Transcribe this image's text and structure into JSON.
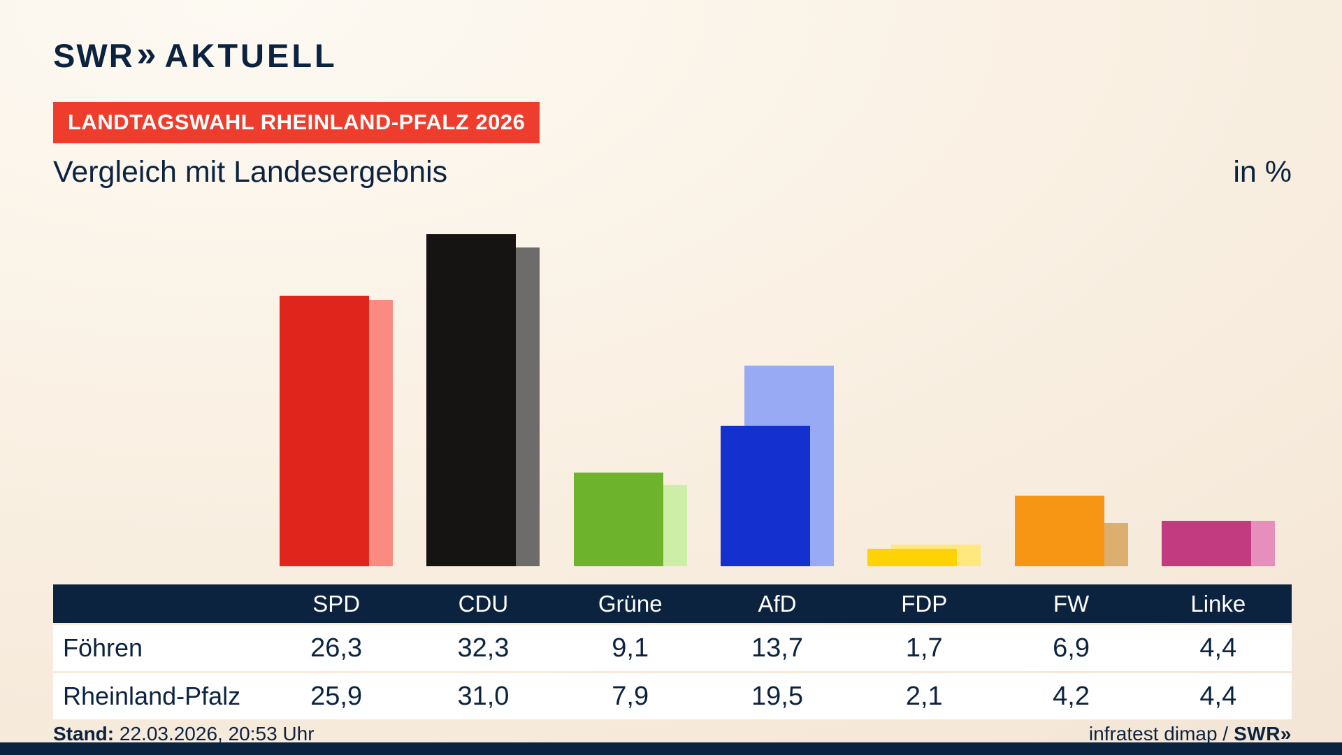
{
  "theme": {
    "navy": "#0c2340",
    "badge_red": "#ee3c2d",
    "background_cream": "#f8efe2"
  },
  "brand": {
    "logo_swr": "SWR",
    "logo_chevrons": "»",
    "logo_aktuell": "AKTUELL"
  },
  "header": {
    "badge": "LANDTAGSWAHL RHEINLAND-PFALZ 2026",
    "title": "Vergleich mit Landesergebnis",
    "unit_label": "in %"
  },
  "chart_data": {
    "type": "bar",
    "title": "Vergleich mit Landesergebnis",
    "unit": "in %",
    "categories": [
      "SPD",
      "CDU",
      "Grüne",
      "AfD",
      "FDP",
      "FW",
      "Linke"
    ],
    "series": [
      {
        "name": "Föhren",
        "values": [
          26.3,
          32.3,
          9.1,
          13.7,
          1.7,
          6.9,
          4.4
        ]
      },
      {
        "name": "Rheinland-Pfalz",
        "values": [
          25.9,
          31.0,
          7.9,
          19.5,
          2.1,
          4.2,
          4.4
        ]
      }
    ],
    "colors": {
      "front": [
        "#e0261c",
        "#161413",
        "#6db32b",
        "#1430cf",
        "#fdd303",
        "#f79515",
        "#c23a7f"
      ],
      "back": [
        "#fb8b81",
        "#6d6c6a",
        "#cdeea6",
        "#98aaf4",
        "#ffe87d",
        "#dcaf6e",
        "#e78fbc"
      ]
    },
    "ylim": [
      0,
      35
    ],
    "grid": false,
    "legend_position": "none",
    "value_format": "comma-decimal"
  },
  "table": {
    "header": [
      "SPD",
      "CDU",
      "Grüne",
      "AfD",
      "FDP",
      "FW",
      "Linke"
    ],
    "rows": [
      {
        "label": "Föhren",
        "values": [
          "26,3",
          "32,3",
          "9,1",
          "13,7",
          "1,7",
          "6,9",
          "4,4"
        ]
      },
      {
        "label": "Rheinland-Pfalz",
        "values": [
          "25,9",
          "31,0",
          "7,9",
          "19,5",
          "2,1",
          "4,2",
          "4,4"
        ]
      }
    ]
  },
  "footer": {
    "stand_label": "Stand:",
    "stand_value": " 22.03.2026, 20:53 Uhr",
    "source_text": "infratest dimap /",
    "source_brand": "SWR»"
  }
}
